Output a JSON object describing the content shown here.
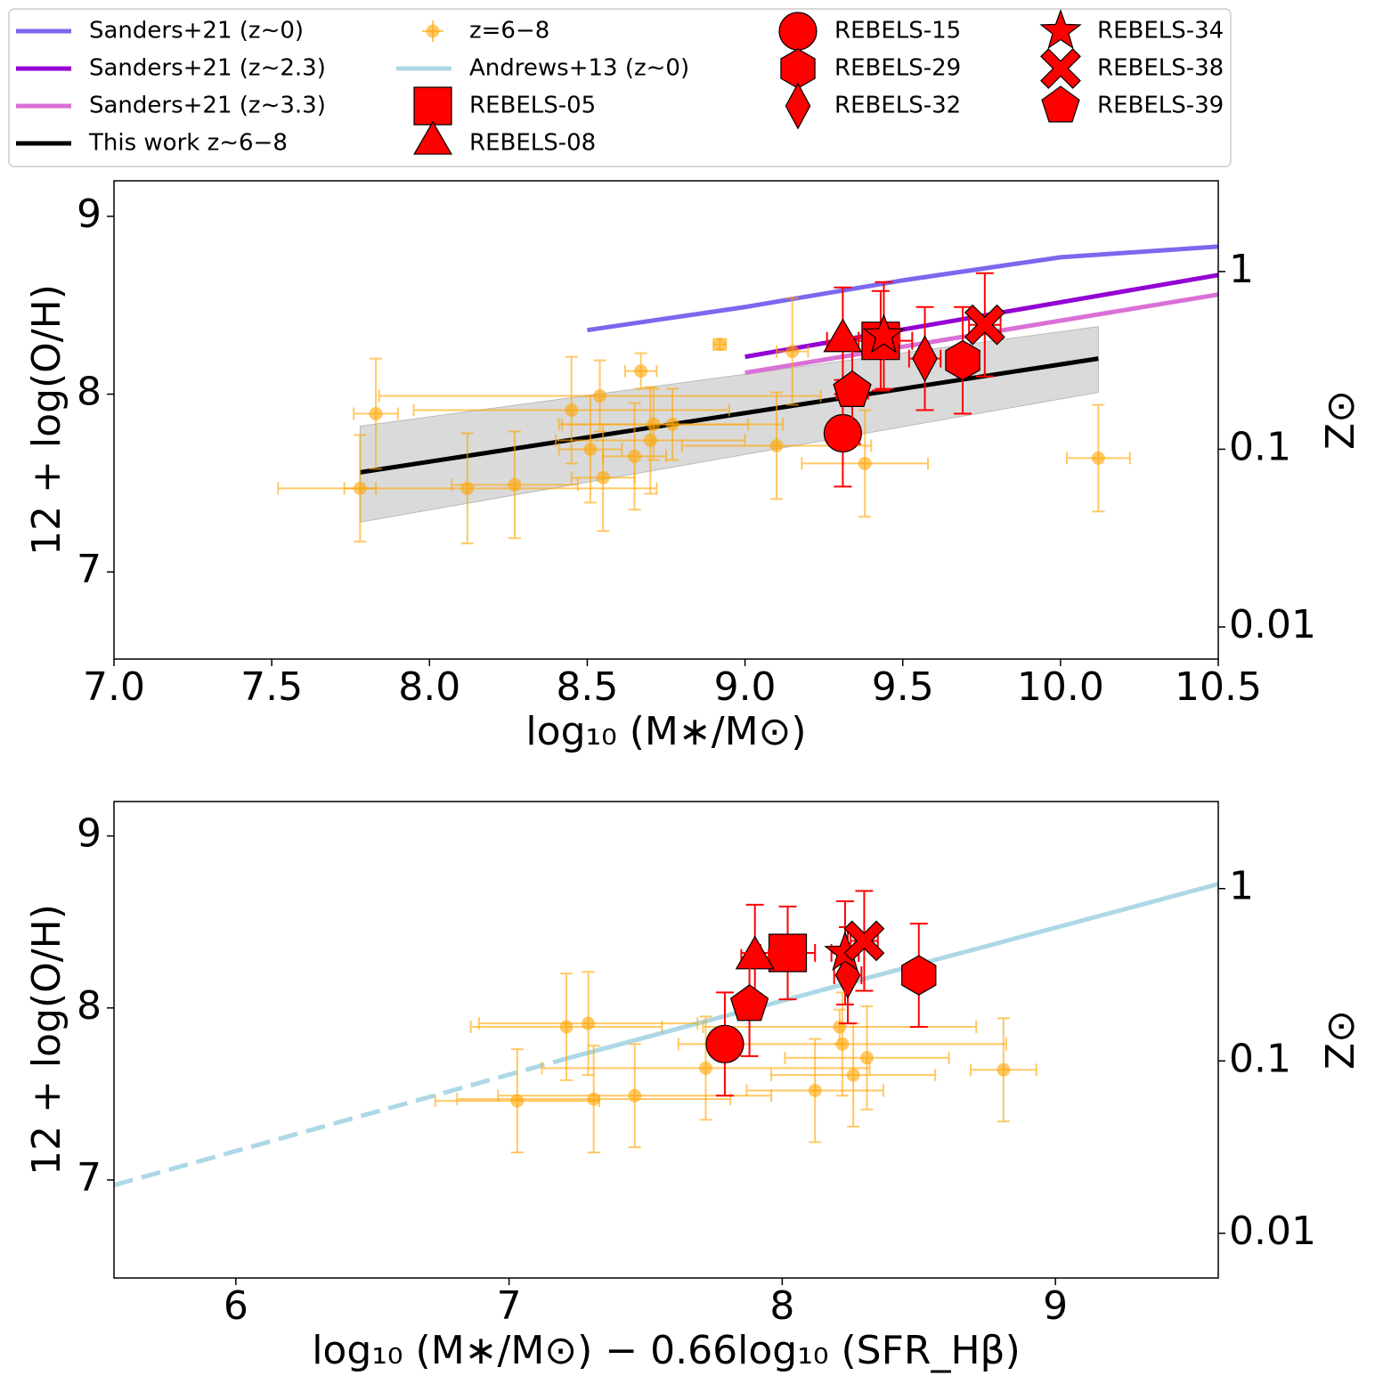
{
  "legend": {
    "loc": "upper center",
    "entries": [
      {
        "name": "Sanders+21 (z∼0)",
        "kind": "line",
        "color": "#7b68ee"
      },
      {
        "name": "Sanders+21 (z∼2.3)",
        "kind": "line",
        "color": "#9400d3"
      },
      {
        "name": "Sanders+21 (z∼3.3)",
        "kind": "line",
        "color": "#da70d6"
      },
      {
        "name": "This work z∼6−8",
        "kind": "line",
        "color": "#000000"
      },
      {
        "name": "z=6−8",
        "kind": "errorbar",
        "color": "#ffa500"
      },
      {
        "name": "Andrews+13 (z∼0)",
        "kind": "line",
        "color": "#add8e6"
      },
      {
        "name": "REBELS-05",
        "kind": "marker",
        "marker": "square",
        "color": "#ff0000"
      },
      {
        "name": "REBELS-08",
        "kind": "marker",
        "marker": "triangle",
        "color": "#ff0000"
      },
      {
        "name": "REBELS-15",
        "kind": "marker",
        "marker": "circle",
        "color": "#ff0000"
      },
      {
        "name": "REBELS-29",
        "kind": "marker",
        "marker": "hexagon",
        "color": "#ff0000"
      },
      {
        "name": "REBELS-32",
        "kind": "marker",
        "marker": "diamond",
        "color": "#ff0000"
      },
      {
        "name": "REBELS-34",
        "kind": "marker",
        "marker": "star",
        "color": "#ff0000"
      },
      {
        "name": "REBELS-38",
        "kind": "marker",
        "marker": "x",
        "color": "#ff0000"
      },
      {
        "name": "REBELS-39",
        "kind": "marker",
        "marker": "pentagon",
        "color": "#ff0000"
      }
    ]
  },
  "chart_data": [
    {
      "type": "scatter",
      "xlabel": "log₁₀ (M∗/M⊙)",
      "ylabel": "12 + log(O/H)",
      "y2label": "Z⊙",
      "xlim": [
        7.0,
        10.5
      ],
      "xticks": [
        {
          "value": 7,
          "label": "7.0"
        },
        7.5,
        {
          "value": 8,
          "label": "8.0"
        },
        8.5,
        {
          "value": 9,
          "label": "9.0"
        },
        9.5,
        {
          "value": 10,
          "label": "10.0"
        },
        10.5
      ],
      "ylim": [
        6.51,
        9.2
      ],
      "yticks": [
        7,
        8,
        9
      ],
      "y2log": true,
      "y2lim": [
        0.0066,
        3.24
      ],
      "y2ticks": [
        0.01,
        0.1,
        1
      ],
      "series": [
        {
          "kind": "band",
          "color": "#d3d3d3",
          "x": [
            7.78,
            10.12
          ],
          "lower": [
            7.28,
            8.01
          ],
          "upper": [
            7.82,
            8.38
          ]
        },
        {
          "kind": "line",
          "color": "#7b68ee",
          "x": [
            8.5,
            9.0,
            9.5,
            10.0,
            10.5
          ],
          "values": [
            8.36,
            8.49,
            8.64,
            8.77,
            8.83
          ]
        },
        {
          "kind": "line",
          "color": "#9400d3",
          "x": [
            9.0,
            10.5
          ],
          "values": [
            8.21,
            8.67
          ]
        },
        {
          "kind": "line",
          "color": "#da70d6",
          "x": [
            9.0,
            10.5
          ],
          "values": [
            8.12,
            8.56
          ]
        },
        {
          "kind": "line",
          "color": "#000000",
          "x": [
            7.78,
            10.12
          ],
          "values": [
            7.56,
            8.2
          ]
        },
        {
          "kind": "errorbar",
          "color": "#ffa500",
          "alpha": 0.6,
          "x": [
            7.78,
            7.83,
            8.12,
            8.27,
            8.45,
            8.51,
            8.54,
            8.55,
            8.65,
            8.67,
            8.7,
            8.71,
            8.77,
            8.92,
            9.1,
            9.15,
            9.38,
            10.12
          ],
          "values": [
            7.47,
            7.89,
            7.47,
            7.49,
            7.91,
            7.69,
            7.99,
            7.53,
            7.65,
            8.13,
            7.74,
            7.83,
            7.83,
            8.28,
            7.71,
            8.24,
            7.61,
            7.64
          ],
          "xerr": [
            0.05,
            0.07,
            0.6,
            0.2,
            0.5,
            0.1,
            0.7,
            0.1,
            0.1,
            0.05,
            0.3,
            0.3,
            0.35,
            0.02,
            0.3,
            0.05,
            0.2,
            0.1
          ],
          "yerr": [
            0.3,
            0.31,
            0.31,
            0.3,
            0.3,
            0.3,
            0.2,
            0.3,
            0.3,
            0.1,
            0.3,
            0.2,
            0.2,
            0.03,
            0.3,
            0.3,
            0.3,
            0.3
          ]
        },
        {
          "kind": "marker",
          "marker": "square",
          "color": "#ff0000",
          "x": [
            9.43
          ],
          "values": [
            8.3
          ],
          "xerr": [
            0.1
          ],
          "yerr": [
            0.28
          ]
        },
        {
          "kind": "marker",
          "marker": "triangle",
          "color": "#ff0000",
          "x": [
            9.31
          ],
          "values": [
            8.3
          ],
          "xerr": [
            0.05
          ],
          "yerr": [
            0.3
          ]
        },
        {
          "kind": "marker",
          "marker": "circle",
          "color": "#ff0000",
          "x": [
            9.31
          ],
          "values": [
            7.78
          ],
          "xerr": [
            0.05
          ],
          "yerr": [
            0.3
          ]
        },
        {
          "kind": "marker",
          "marker": "hexagon",
          "color": "#ff0000",
          "x": [
            9.69
          ],
          "values": [
            8.19
          ],
          "xerr": [
            0.05
          ],
          "yerr": [
            0.3
          ]
        },
        {
          "kind": "marker",
          "marker": "diamond",
          "color": "#ff0000",
          "x": [
            9.57
          ],
          "values": [
            8.2
          ],
          "xerr": [
            0.05
          ],
          "yerr": [
            0.29
          ]
        },
        {
          "kind": "marker",
          "marker": "star",
          "color": "#ff0000",
          "x": [
            9.44
          ],
          "values": [
            8.33
          ],
          "xerr": [
            0.05
          ],
          "yerr": [
            0.3
          ]
        },
        {
          "kind": "marker",
          "marker": "x",
          "color": "#ff0000",
          "x": [
            9.76
          ],
          "values": [
            8.39
          ],
          "xerr": [
            0.05
          ],
          "yerr": [
            0.29
          ]
        },
        {
          "kind": "marker",
          "marker": "pentagon",
          "color": "#ff0000",
          "x": [
            9.34
          ],
          "values": [
            8.02
          ],
          "xerr": [
            0.05
          ],
          "yerr": [
            0.3
          ]
        }
      ]
    },
    {
      "type": "scatter",
      "xlabel": "log₁₀ (M∗/M⊙) − 0.66log₁₀ (SFR_Hβ)",
      "ylabel": "12 + log(O/H)",
      "y2label": "Z⊙",
      "xlim": [
        5.554,
        9.596
      ],
      "xticks": [
        6,
        7,
        8,
        9
      ],
      "ylim": [
        6.43,
        9.2
      ],
      "yticks": [
        7,
        8,
        9
      ],
      "y2log": true,
      "y2lim": [
        0.0055,
        3.2
      ],
      "y2ticks": [
        0.01,
        0.1,
        1
      ],
      "series": [
        {
          "kind": "line",
          "color": "#add8e6",
          "dash": true,
          "x": [
            5.554,
            7.22
          ],
          "values": [
            6.97,
            7.71
          ]
        },
        {
          "kind": "line",
          "color": "#add8e6",
          "x": [
            7.22,
            9.596
          ],
          "values": [
            7.71,
            8.72
          ]
        },
        {
          "kind": "errorbar",
          "color": "#ffa500",
          "alpha": 0.6,
          "x": [
            7.03,
            7.21,
            7.29,
            7.31,
            7.46,
            7.72,
            8.12,
            8.21,
            8.22,
            8.26,
            8.31,
            8.81
          ],
          "values": [
            7.46,
            7.89,
            7.91,
            7.47,
            7.49,
            7.65,
            7.52,
            7.89,
            7.79,
            7.61,
            7.71,
            7.64
          ],
          "xerr": [
            0.3,
            0.35,
            0.4,
            0.5,
            0.5,
            0.6,
            0.25,
            0.5,
            0.6,
            0.3,
            0.3,
            0.12
          ],
          "yerr": [
            0.3,
            0.31,
            0.3,
            0.31,
            0.3,
            0.3,
            0.3,
            0.1,
            0.3,
            0.3,
            0.3,
            0.3
          ]
        },
        {
          "kind": "marker",
          "marker": "square",
          "color": "#ff0000",
          "x": [
            8.02
          ],
          "values": [
            8.32
          ],
          "xerr": [
            0.1
          ],
          "yerr": [
            0.27
          ]
        },
        {
          "kind": "marker",
          "marker": "triangle",
          "color": "#ff0000",
          "x": [
            7.9
          ],
          "values": [
            8.29
          ],
          "xerr": [
            0.05
          ],
          "yerr": [
            0.31
          ]
        },
        {
          "kind": "marker",
          "marker": "circle",
          "color": "#ff0000",
          "x": [
            7.79
          ],
          "values": [
            7.79
          ],
          "xerr": [
            0.05
          ],
          "yerr": [
            0.3
          ]
        },
        {
          "kind": "marker",
          "marker": "hexagon",
          "color": "#ff0000",
          "x": [
            8.5
          ],
          "values": [
            8.19
          ],
          "xerr": [
            0.05
          ],
          "yerr": [
            0.3
          ]
        },
        {
          "kind": "marker",
          "marker": "diamond",
          "color": "#ff0000",
          "x": [
            8.24
          ],
          "values": [
            8.19
          ],
          "xerr": [
            0.05
          ],
          "yerr": [
            0.28
          ]
        },
        {
          "kind": "marker",
          "marker": "star",
          "color": "#ff0000",
          "x": [
            8.23
          ],
          "values": [
            8.32
          ],
          "xerr": [
            0.05
          ],
          "yerr": [
            0.3
          ]
        },
        {
          "kind": "marker",
          "marker": "x",
          "color": "#ff0000",
          "x": [
            8.3
          ],
          "values": [
            8.39
          ],
          "xerr": [
            0.05
          ],
          "yerr": [
            0.29
          ]
        },
        {
          "kind": "marker",
          "marker": "pentagon",
          "color": "#ff0000",
          "x": [
            7.88
          ],
          "values": [
            8.02
          ],
          "xerr": [
            0.05
          ],
          "yerr": [
            0.3
          ]
        }
      ]
    }
  ]
}
